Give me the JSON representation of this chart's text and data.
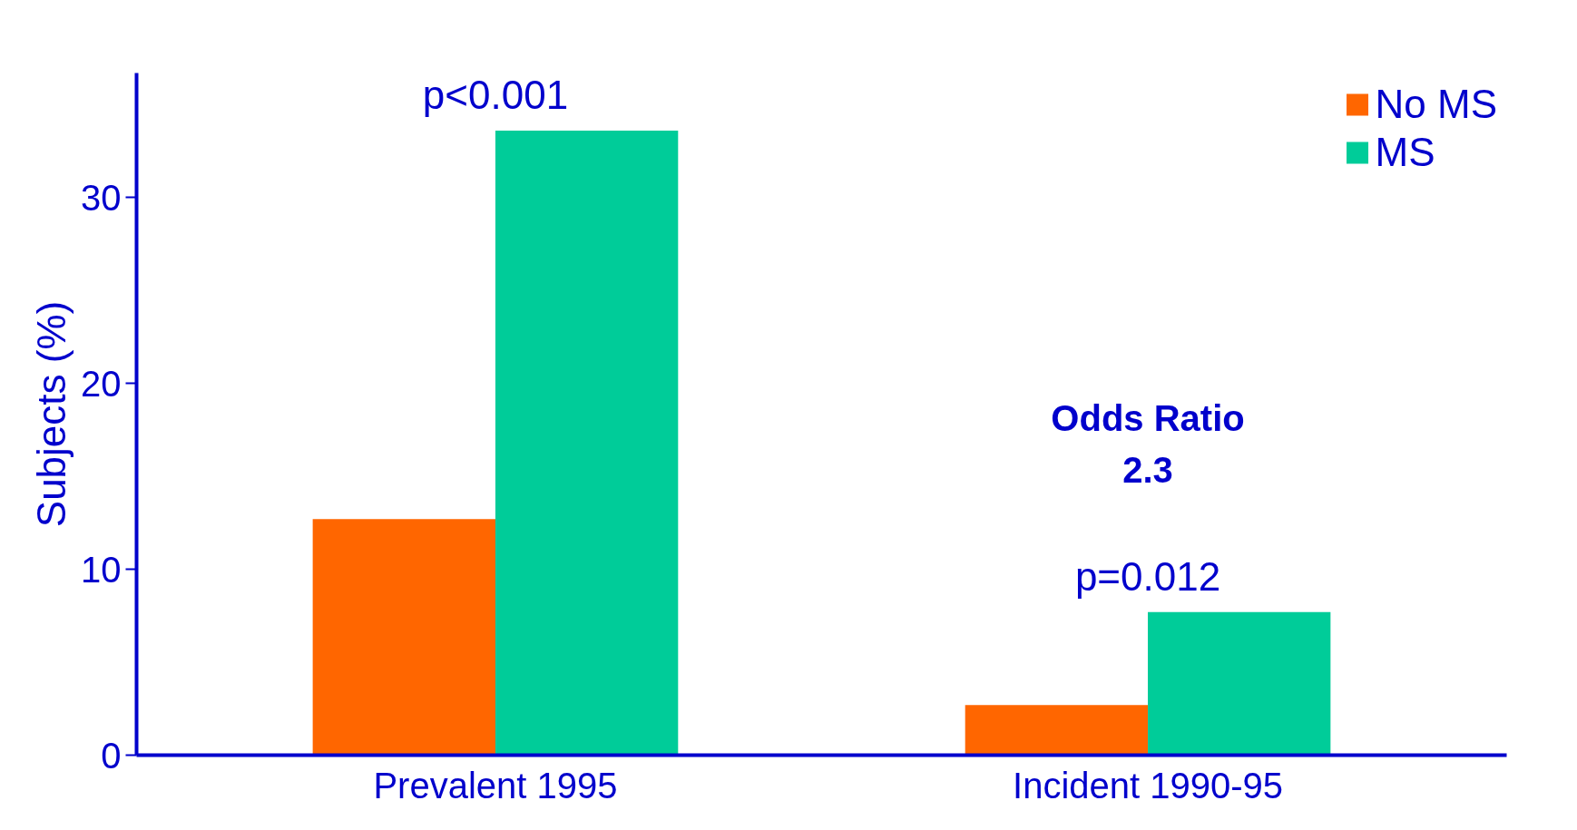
{
  "chart_data": {
    "type": "bar",
    "ylabel": "Subjects (%)",
    "categories": [
      "Prevalent 1995",
      "Incident 1990-95"
    ],
    "series": [
      {
        "name": "No MS",
        "color": "#ff6600",
        "values": [
          12.7,
          2.7
        ]
      },
      {
        "name": "MS",
        "color": "#00cc99",
        "values": [
          33.6,
          7.7
        ]
      }
    ],
    "ylim": [
      0,
      36.7
    ],
    "yticks": [
      0,
      10,
      20,
      30
    ],
    "grid": false,
    "legend": "top right",
    "annotations": [
      "p<0.001",
      "p=0.012",
      "Odds Ratio\n2.3"
    ]
  }
}
